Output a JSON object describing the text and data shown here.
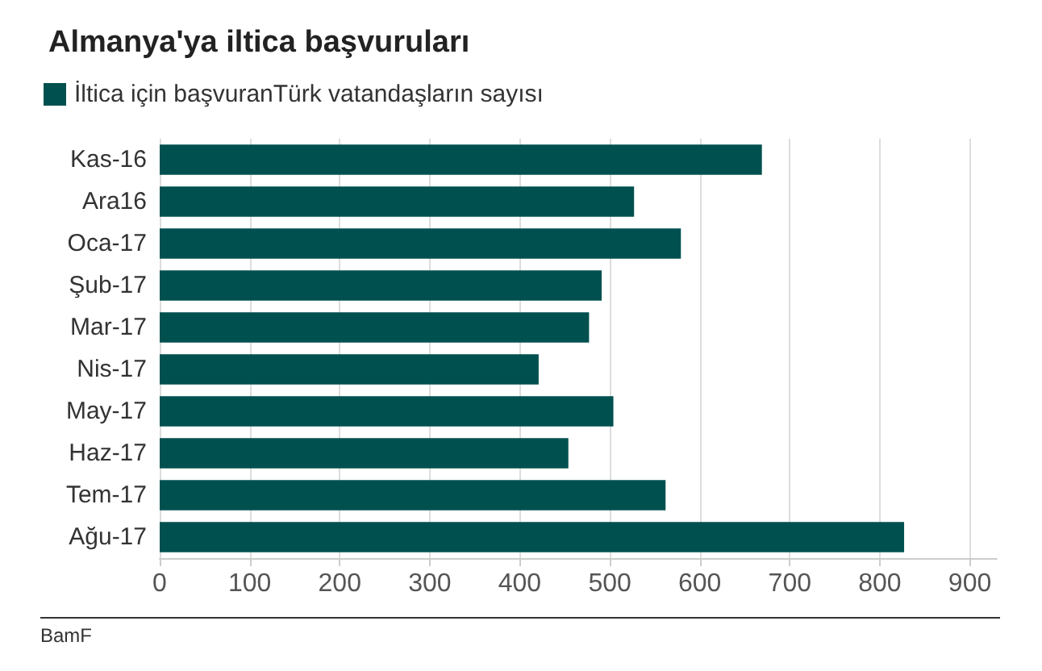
{
  "chart_data": {
    "type": "bar",
    "orientation": "horizontal",
    "title": "Almanya'ya iltica başvuruları",
    "categories": [
      "Kas-16",
      "Ara16",
      "Oca-17",
      "Şub-17",
      "Mar-17",
      "Nis-17",
      "May-17",
      "Haz-17",
      "Tem-17",
      "Ağu-17"
    ],
    "series": [
      {
        "name": "İltica için başvuranTürk vatandaşların sayısı",
        "color": "#00504f",
        "values": [
          669,
          527,
          579,
          491,
          477,
          421,
          504,
          454,
          562,
          827
        ]
      }
    ],
    "xlim": [
      0,
      930
    ],
    "xticks": [
      0,
      100,
      200,
      300,
      400,
      500,
      600,
      700,
      800,
      900
    ],
    "grid": "x",
    "legend": "top left",
    "annotations": [
      "BamF"
    ]
  }
}
